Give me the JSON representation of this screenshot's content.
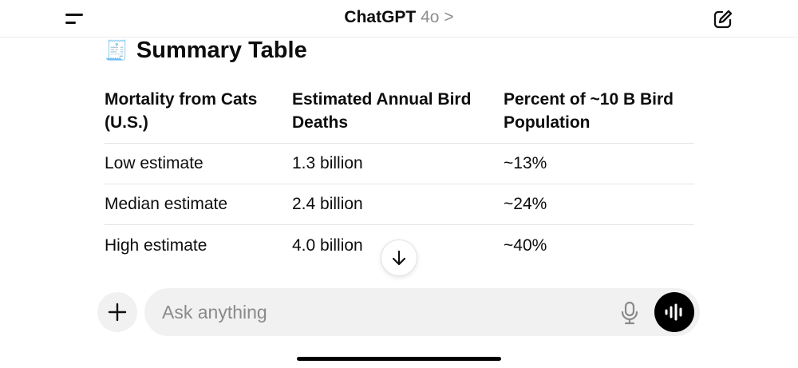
{
  "header": {
    "app": "ChatGPT",
    "model": "4o",
    "chevron": ">"
  },
  "section": {
    "emoji": "🧾",
    "title": "Summary Table"
  },
  "table": {
    "headers": [
      "Mortality from Cats (U.S.)",
      "Estimated Annual Bird Deaths",
      "Percent of ~10 B Bird Population"
    ],
    "rows": [
      [
        "Low estimate",
        "1.3 billion",
        "~13%"
      ],
      [
        "Median estimate",
        "2.4 billion",
        "~24%"
      ],
      [
        "High estimate",
        "4.0 billion",
        "~40%"
      ]
    ]
  },
  "composer": {
    "placeholder": "Ask anything"
  }
}
